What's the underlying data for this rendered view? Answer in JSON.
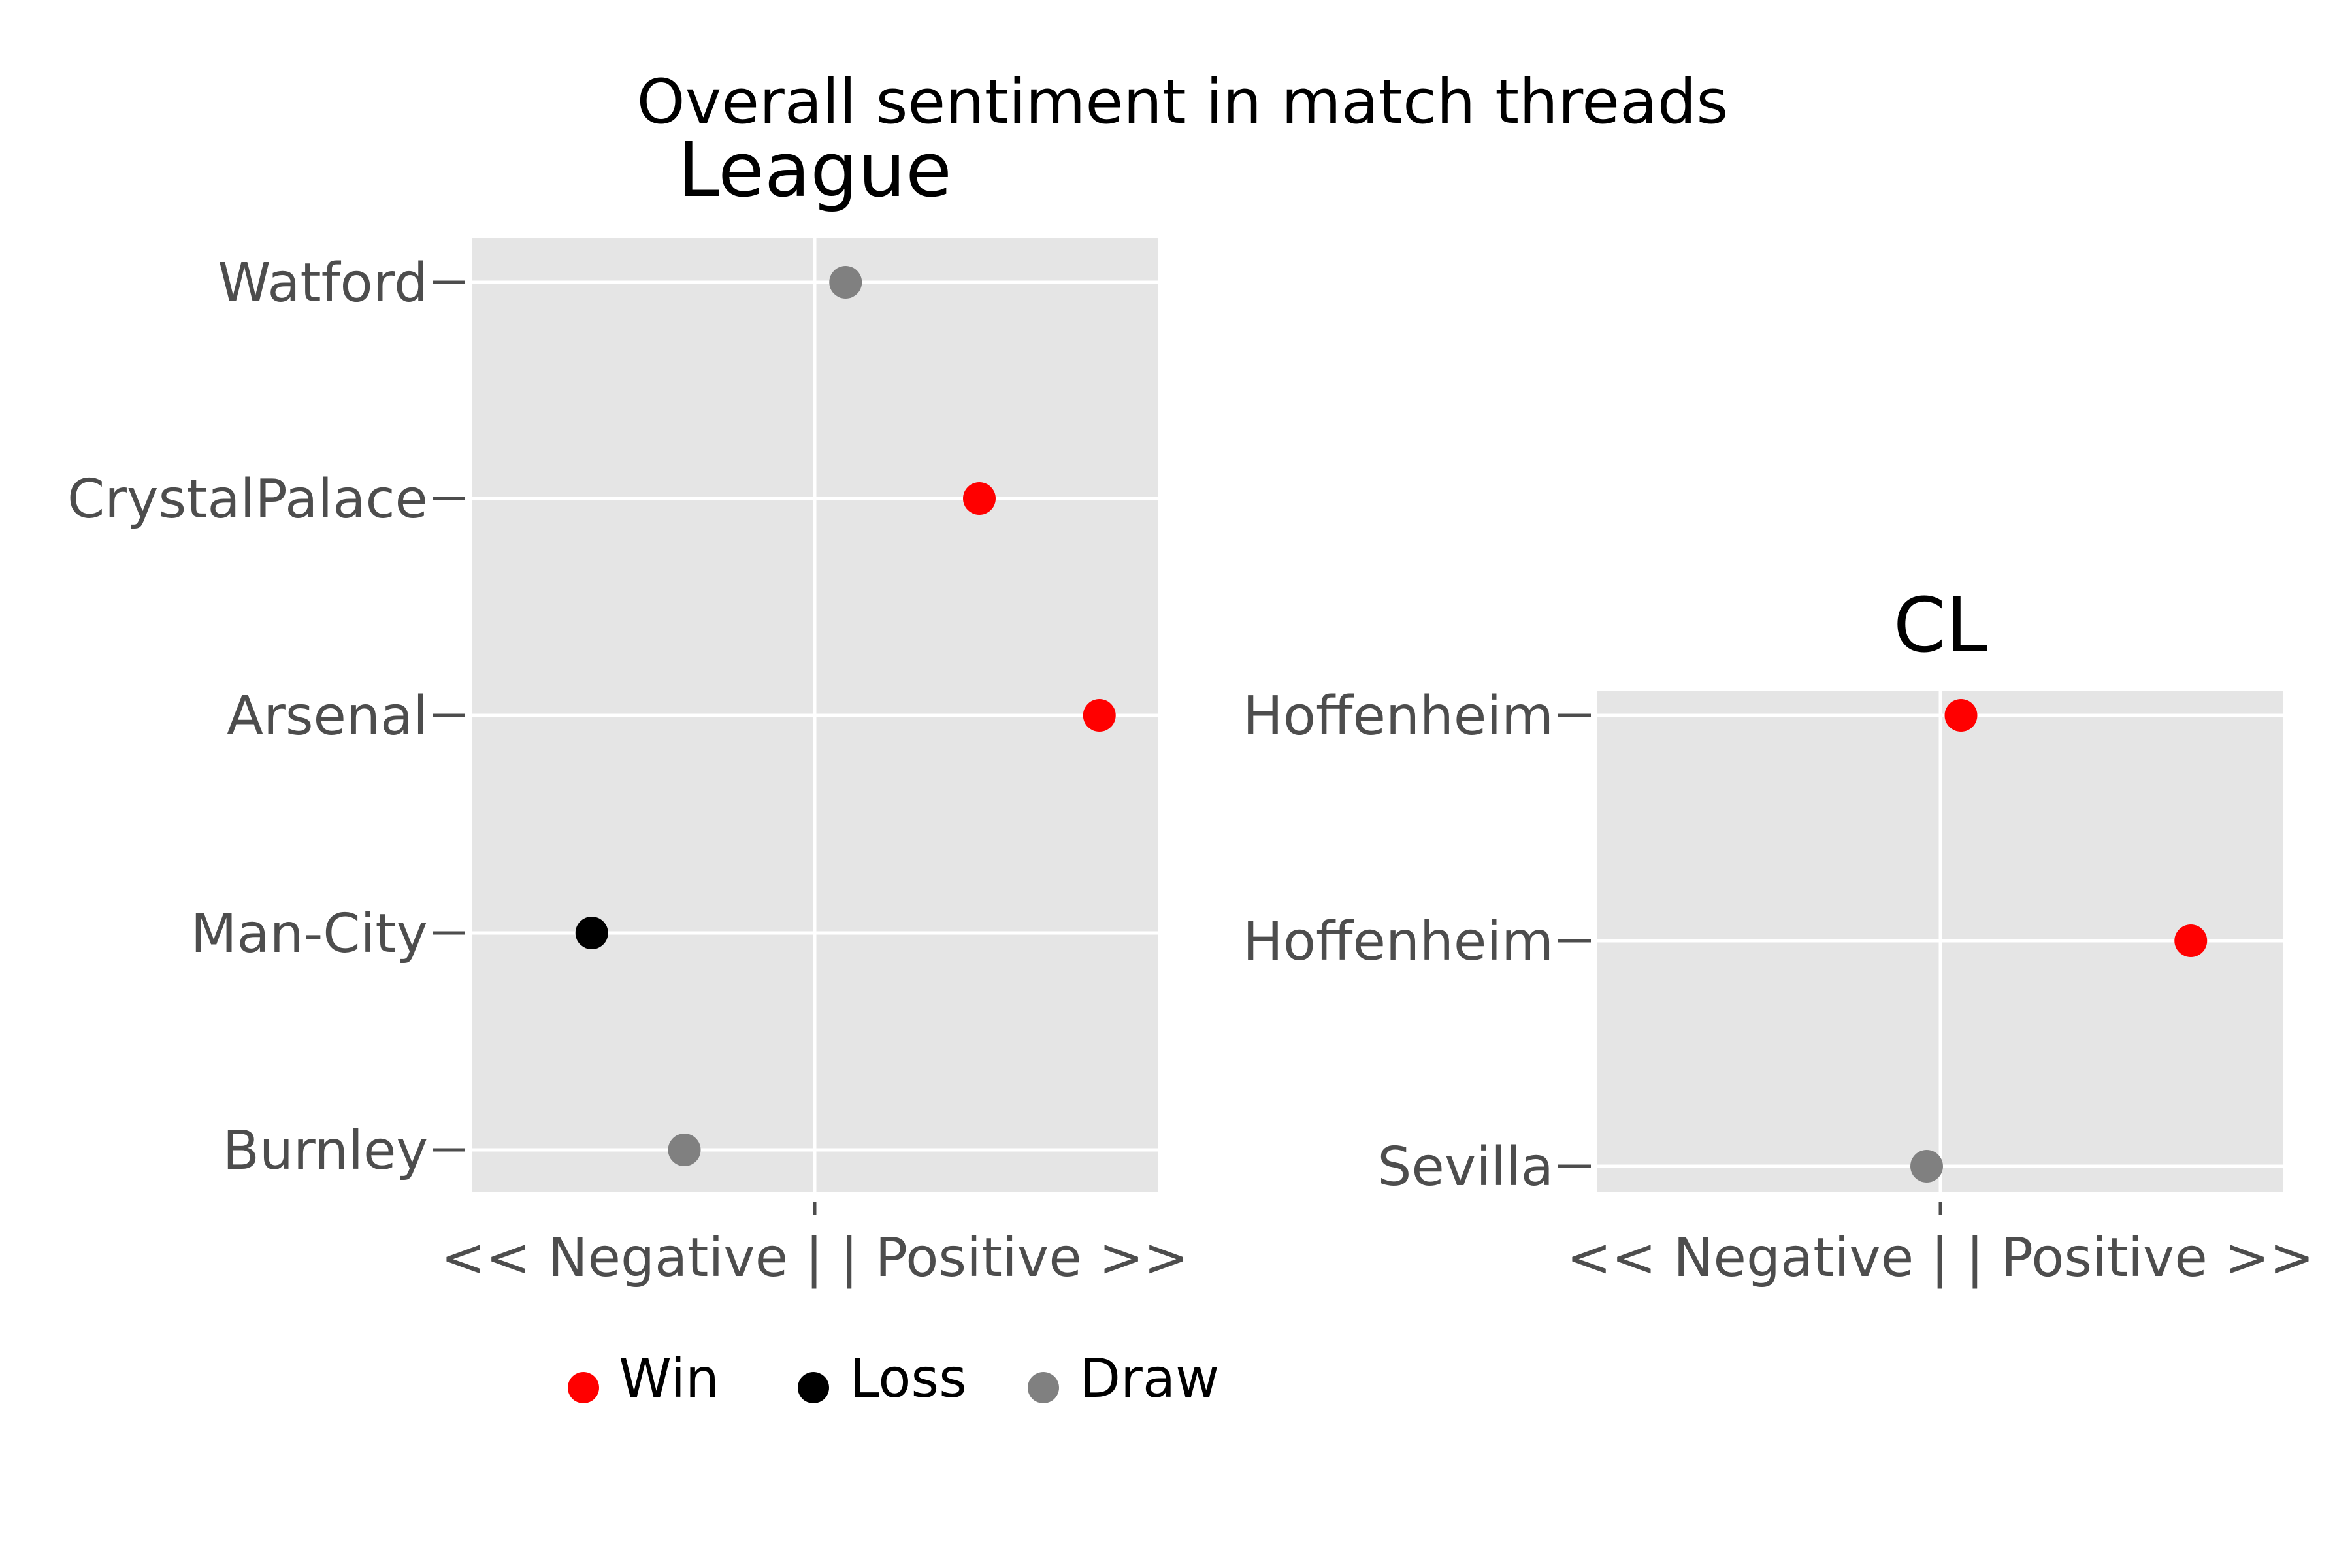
{
  "chart_data": {
    "type": "scatter",
    "title": "Overall sentiment in match threads",
    "panels": [
      {
        "title": "League",
        "xlabel": "<< Negative | | Positive >>",
        "xlim": [
          -1,
          1
        ],
        "categories": [
          "Burnley",
          "Man-City",
          "Arsenal",
          "CrystalPalace",
          "Watford"
        ],
        "points": [
          {
            "team": "Watford",
            "x": 0.09,
            "result": "Draw"
          },
          {
            "team": "CrystalPalace",
            "x": 0.48,
            "result": "Win"
          },
          {
            "team": "Arsenal",
            "x": 0.83,
            "result": "Win"
          },
          {
            "team": "Man-City",
            "x": -0.65,
            "result": "Loss"
          },
          {
            "team": "Burnley",
            "x": -0.38,
            "result": "Draw"
          }
        ]
      },
      {
        "title": "CL",
        "xlabel": "<< Negative | | Positive >>",
        "xlim": [
          -1,
          1
        ],
        "categories": [
          "Sevilla",
          "Hoffenheim",
          "Hoffenheim"
        ],
        "points": [
          {
            "team": "Hoffenheim",
            "x": 0.06,
            "result": "Win"
          },
          {
            "team": "Hoffenheim",
            "x": 0.73,
            "result": "Win"
          },
          {
            "team": "Sevilla",
            "x": -0.04,
            "result": "Draw"
          }
        ]
      }
    ],
    "legend": {
      "position": "bottom",
      "entries": [
        {
          "label": "Win",
          "color": "#ff0000"
        },
        {
          "label": "Loss",
          "color": "#000000"
        },
        {
          "label": "Draw",
          "color": "#808080"
        }
      ]
    },
    "colors": {
      "Win": "#ff0000",
      "Loss": "#000000",
      "Draw": "#808080"
    },
    "grid": true,
    "panel_background": "#e5e5e5"
  }
}
